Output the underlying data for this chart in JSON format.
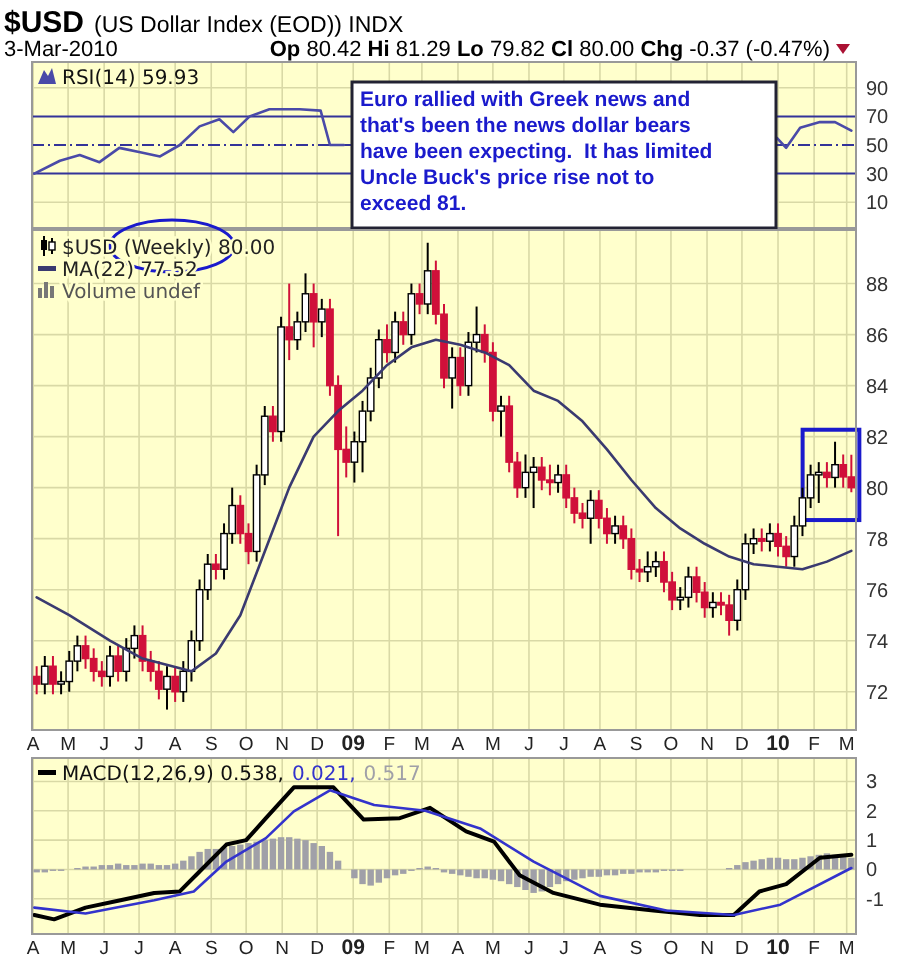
{
  "chart_data": [
    {
      "type": "line",
      "title": "$USD",
      "subtitle": "(US Dollar Index (EOD)) INDX",
      "annotations": [
        "3-Mar-2010",
        "Op 80.42 Hi 81.29 Lo 79.82 Cl 80.00 Chg -0.37 (-0.47%)",
        "Euro rallied with Greek news and that's been the news dollar bears have been expecting.  It has limited Uncle Buck's price rise not to exceed 81."
      ],
      "xlim": [
        "2008-03-31",
        "2010-03-09"
      ],
      "xticks": [
        {
          "value": "2008-04-01",
          "label": null
        },
        {
          "value": "2008-05-01",
          "label": null
        },
        {
          "value": "2008-06-01",
          "label": null
        },
        {
          "value": "2008-07-01",
          "label": null
        },
        {
          "value": "2008-08-01",
          "label": null
        },
        {
          "value": "2008-09-01",
          "label": null
        },
        {
          "value": "2008-10-01",
          "label": null
        },
        {
          "value": "2008-11-01",
          "label": null
        },
        {
          "value": "2008-12-01",
          "label": null
        },
        {
          "value": "2009-01-01",
          "label": null
        },
        {
          "value": "2009-02-01",
          "label": null
        },
        {
          "value": "2009-03-01",
          "label": null
        },
        {
          "value": "2009-04-01",
          "label": null
        },
        {
          "value": "2009-05-01",
          "label": null
        },
        {
          "value": "2009-06-01",
          "label": null
        },
        {
          "value": "2009-07-01",
          "label": null
        },
        {
          "value": "2009-08-01",
          "label": null
        },
        {
          "value": "2009-09-01",
          "label": null
        },
        {
          "value": "2009-10-01",
          "label": null
        },
        {
          "value": "2009-11-01",
          "label": null
        },
        {
          "value": "2009-12-01",
          "label": null
        },
        {
          "value": "2010-01-01",
          "label": null
        },
        {
          "value": "2010-02-01",
          "label": null
        },
        {
          "value": "2010-03-01",
          "label": null
        }
      ],
      "ylim": [
        -8,
        108
      ],
      "yticks": [
        10,
        30,
        50,
        70,
        90
      ],
      "grid": true,
      "tick_labels": "y",
      "legend": "top left",
      "ref_lines": [
        {
          "axis": "y",
          "value": 70,
          "color": "#333399"
        },
        {
          "axis": "y",
          "value": 50,
          "line_style": "dashed",
          "color": "#333399"
        },
        {
          "axis": "y",
          "value": 30,
          "color": "#333399"
        }
      ],
      "series": [
        {
          "name": "RSI(14) 59.93",
          "color": "#4a4aa8",
          "x": [
            "2008-04-02",
            "2008-04-24",
            "2008-05-11",
            "2008-05-28",
            "2008-06-14",
            "2008-07-02",
            "2008-07-19",
            "2008-08-05",
            "2008-08-22",
            "2008-09-08",
            "2008-09-20",
            "2008-10-04",
            "2008-10-21",
            "2008-11-16",
            "2008-12-04",
            "2008-12-12",
            "2008-12-24",
            "2009-06-15",
            "2009-12-31",
            "2010-01-08",
            "2010-01-20",
            "2010-02-06",
            "2010-02-19",
            "2010-03-05"
          ],
          "values": [
            30,
            39,
            43,
            38,
            48,
            45,
            42,
            50,
            63,
            68,
            59,
            70,
            75,
            75,
            74,
            50,
            50,
            null,
            55,
            48,
            62,
            66,
            66,
            60
          ]
        }
      ]
    },
    {
      "type": "candlestick",
      "xlim": [
        "2008-03-31",
        "2010-03-09"
      ],
      "xticks": [
        {
          "value": "2008-04-01",
          "label": "A"
        },
        {
          "value": "2008-05-01",
          "label": "M"
        },
        {
          "value": "2008-06-01",
          "label": "J"
        },
        {
          "value": "2008-07-01",
          "label": "J"
        },
        {
          "value": "2008-08-01",
          "label": "A"
        },
        {
          "value": "2008-09-01",
          "label": "S"
        },
        {
          "value": "2008-10-01",
          "label": "O"
        },
        {
          "value": "2008-11-01",
          "label": "N"
        },
        {
          "value": "2008-12-01",
          "label": "D"
        },
        {
          "value": "2009-01-01",
          "label": "09"
        },
        {
          "value": "2009-02-01",
          "label": "F"
        },
        {
          "value": "2009-03-01",
          "label": "M"
        },
        {
          "value": "2009-04-01",
          "label": "A"
        },
        {
          "value": "2009-05-01",
          "label": "M"
        },
        {
          "value": "2009-06-01",
          "label": "J"
        },
        {
          "value": "2009-07-01",
          "label": "J"
        },
        {
          "value": "2009-08-01",
          "label": "A"
        },
        {
          "value": "2009-09-01",
          "label": "S"
        },
        {
          "value": "2009-10-01",
          "label": "O"
        },
        {
          "value": "2009-11-01",
          "label": "N"
        },
        {
          "value": "2009-12-01",
          "label": "D"
        },
        {
          "value": "2010-01-01",
          "label": "10"
        },
        {
          "value": "2010-02-01",
          "label": "F"
        },
        {
          "value": "2010-03-01",
          "label": "M"
        }
      ],
      "ylim": [
        70.5,
        90.1
      ],
      "yticks": [
        72,
        74,
        76,
        78,
        80,
        82,
        84,
        86,
        88
      ],
      "grid": true,
      "legend": "top left",
      "annotations": [
        "Volume undef"
      ],
      "series": [
        {
          "name": "$USD (Weekly) 80.00",
          "colors": [
            "#d0103a",
            "#ffffff",
            "#d0103a",
            "#ffffff",
            "#ffffff",
            "#ffffff",
            "#d0103a",
            "#d0103a",
            "#d0103a",
            "#ffffff",
            "#d0103a",
            "#ffffff",
            "#ffffff",
            "#d0103a",
            "#d0103a",
            "#d0103a",
            "#ffffff",
            "#d0103a",
            "#ffffff",
            "#ffffff",
            "#ffffff",
            "#ffffff",
            "#d0103a",
            "#ffffff",
            "#ffffff",
            "#d0103a",
            "#d0103a",
            "#ffffff",
            "#ffffff",
            "#d0103a",
            "#ffffff",
            "#d0103a",
            "#ffffff",
            "#ffffff",
            "#d0103a",
            "#ffffff",
            "#d0103a",
            "#d0103a",
            "#d0103a",
            "#ffffff",
            "#ffffff",
            "#ffffff",
            "#ffffff",
            "#d0103a",
            "#ffffff",
            "#d0103a",
            "#ffffff",
            "#d0103a",
            "#ffffff",
            "#d0103a",
            "#d0103a",
            "#ffffff",
            "#d0103a",
            "#ffffff",
            "#ffffff",
            "#d0103a",
            "#d0103a",
            "#ffffff",
            "#d0103a",
            "#d0103a",
            "#ffffff",
            "#ffffff",
            "#d0103a",
            "#d0103a",
            "#ffffff",
            "#d0103a",
            "#d0103a",
            "#d0103a",
            "#ffffff",
            "#d0103a",
            "#d0103a",
            "#ffffff",
            "#d0103a",
            "#d0103a",
            "#d0103a",
            "#ffffff",
            "#ffffff",
            "#d0103a",
            "#d0103a",
            "#ffffff",
            "#ffffff",
            "#d0103a",
            "#d0103a",
            "#ffffff",
            "#d0103a",
            "#d0103a",
            "#ffffff",
            "#ffffff",
            "#ffffff",
            "#d0103a",
            "#ffffff",
            "#d0103a",
            "#d0103a",
            "#ffffff",
            "#ffffff",
            "#ffffff",
            "#ffffff",
            "#d0103a",
            "#ffffff",
            "#d0103a",
            "#d0103a"
          ],
          "x": [
            "2008-04-04",
            "2008-04-11",
            "2008-04-18",
            "2008-04-25",
            "2008-05-02",
            "2008-05-09",
            "2008-05-16",
            "2008-05-23",
            "2008-05-30",
            "2008-06-06",
            "2008-06-13",
            "2008-06-20",
            "2008-06-27",
            "2008-07-04",
            "2008-07-11",
            "2008-07-18",
            "2008-07-25",
            "2008-08-01",
            "2008-08-08",
            "2008-08-15",
            "2008-08-22",
            "2008-08-29",
            "2008-09-05",
            "2008-09-12",
            "2008-09-19",
            "2008-09-26",
            "2008-10-03",
            "2008-10-10",
            "2008-10-17",
            "2008-10-24",
            "2008-10-31",
            "2008-11-07",
            "2008-11-14",
            "2008-11-21",
            "2008-11-28",
            "2008-12-05",
            "2008-12-12",
            "2008-12-19",
            "2008-12-26",
            "2009-01-02",
            "2009-01-09",
            "2009-01-16",
            "2009-01-23",
            "2009-01-30",
            "2009-02-06",
            "2009-02-13",
            "2009-02-20",
            "2009-02-27",
            "2009-03-06",
            "2009-03-13",
            "2009-03-20",
            "2009-03-27",
            "2009-04-03",
            "2009-04-10",
            "2009-04-17",
            "2009-04-24",
            "2009-05-01",
            "2009-05-08",
            "2009-05-15",
            "2009-05-22",
            "2009-05-29",
            "2009-06-05",
            "2009-06-12",
            "2009-06-19",
            "2009-06-26",
            "2009-07-03",
            "2009-07-10",
            "2009-07-17",
            "2009-07-24",
            "2009-07-31",
            "2009-08-07",
            "2009-08-14",
            "2009-08-21",
            "2009-08-28",
            "2009-09-04",
            "2009-09-11",
            "2009-09-18",
            "2009-09-25",
            "2009-10-02",
            "2009-10-09",
            "2009-10-16",
            "2009-10-23",
            "2009-10-30",
            "2009-11-06",
            "2009-11-13",
            "2009-11-20",
            "2009-11-27",
            "2009-12-04",
            "2009-12-11",
            "2009-12-18",
            "2009-12-25",
            "2010-01-01",
            "2010-01-08",
            "2010-01-15",
            "2010-01-22",
            "2010-01-29",
            "2010-02-05",
            "2010-02-12",
            "2010-02-19",
            "2010-02-26",
            "2010-03-05"
          ],
          "ohlc": [
            [
              72.6,
              73.0,
              71.9,
              72.3
            ],
            [
              72.3,
              73.4,
              71.9,
              73.0
            ],
            [
              73.0,
              73.4,
              71.9,
              72.3
            ],
            [
              72.3,
              72.8,
              71.9,
              72.4
            ],
            [
              72.4,
              73.6,
              72.0,
              73.2
            ],
            [
              73.2,
              74.2,
              72.8,
              73.8
            ],
            [
              73.8,
              74.2,
              72.9,
              73.3
            ],
            [
              73.3,
              73.7,
              72.4,
              72.8
            ],
            [
              72.8,
              73.2,
              72.2,
              72.6
            ],
            [
              72.6,
              73.8,
              72.2,
              73.4
            ],
            [
              73.4,
              73.8,
              72.4,
              72.8
            ],
            [
              72.8,
              74.1,
              72.4,
              73.7
            ],
            [
              73.7,
              74.6,
              73.3,
              74.2
            ],
            [
              74.2,
              74.6,
              72.8,
              73.2
            ],
            [
              73.2,
              73.6,
              72.4,
              72.8
            ],
            [
              72.8,
              73.2,
              71.7,
              72.1
            ],
            [
              72.1,
              73.0,
              71.3,
              72.6
            ],
            [
              72.6,
              73.0,
              71.6,
              72.0
            ],
            [
              72.0,
              73.2,
              71.6,
              72.8
            ],
            [
              72.8,
              74.4,
              72.4,
              74.0
            ],
            [
              74.0,
              76.4,
              73.6,
              76.0
            ],
            [
              76.0,
              77.4,
              75.6,
              77.0
            ],
            [
              77.0,
              77.4,
              76.4,
              76.8
            ],
            [
              76.8,
              78.6,
              76.4,
              78.2
            ],
            [
              78.2,
              80.0,
              77.8,
              79.3
            ],
            [
              79.3,
              79.7,
              77.8,
              78.2
            ],
            [
              78.2,
              78.6,
              77.0,
              77.5
            ],
            [
              77.5,
              80.9,
              77.1,
              80.5
            ],
            [
              80.5,
              83.2,
              80.1,
              82.8
            ],
            [
              82.8,
              83.2,
              81.8,
              82.2
            ],
            [
              82.2,
              86.7,
              81.8,
              86.3
            ],
            [
              86.3,
              88.0,
              85.0,
              85.8
            ],
            [
              85.8,
              86.9,
              85.4,
              86.5
            ],
            [
              86.5,
              88.4,
              86.1,
              87.6
            ],
            [
              87.6,
              88.0,
              85.5,
              86.5
            ],
            [
              86.5,
              87.4,
              85.9,
              87.0
            ],
            [
              87.0,
              87.4,
              83.6,
              84.0
            ],
            [
              84.0,
              84.4,
              78.1,
              81.5
            ],
            [
              81.5,
              82.4,
              80.4,
              81.0
            ],
            [
              81.0,
              82.2,
              80.2,
              81.8
            ],
            [
              81.8,
              83.4,
              80.6,
              83.0
            ],
            [
              83.0,
              84.7,
              82.6,
              84.3
            ],
            [
              84.3,
              86.2,
              83.9,
              85.8
            ],
            [
              85.8,
              86.4,
              84.9,
              85.3
            ],
            [
              85.3,
              86.9,
              84.9,
              86.5
            ],
            [
              86.5,
              86.9,
              85.6,
              86.0
            ],
            [
              86.0,
              88.0,
              85.6,
              87.6
            ],
            [
              87.6,
              88.0,
              86.8,
              87.2
            ],
            [
              87.2,
              89.6,
              86.8,
              88.5
            ],
            [
              88.5,
              88.9,
              86.4,
              86.8
            ],
            [
              86.8,
              87.2,
              83.9,
              84.3
            ],
            [
              84.3,
              85.5,
              83.1,
              85.1
            ],
            [
              85.1,
              85.5,
              83.6,
              84.0
            ],
            [
              84.0,
              86.1,
              83.6,
              85.7
            ],
            [
              85.7,
              87.1,
              85.3,
              86.0
            ],
            [
              86.0,
              86.4,
              84.9,
              85.3
            ],
            [
              85.3,
              85.7,
              82.6,
              83.0
            ],
            [
              83.0,
              83.6,
              82.0,
              83.2
            ],
            [
              83.2,
              83.6,
              80.6,
              81.0
            ],
            [
              81.0,
              81.4,
              79.6,
              80.0
            ],
            [
              80.0,
              81.3,
              79.6,
              80.6
            ],
            [
              80.6,
              81.2,
              79.2,
              80.8
            ],
            [
              80.8,
              81.2,
              79.9,
              80.3
            ],
            [
              80.3,
              80.9,
              79.7,
              80.2
            ],
            [
              80.2,
              80.9,
              79.8,
              80.5
            ],
            [
              80.5,
              80.9,
              79.2,
              79.6
            ],
            [
              79.6,
              80.0,
              78.6,
              79.0
            ],
            [
              79.0,
              79.4,
              78.4,
              78.8
            ],
            [
              78.8,
              79.9,
              77.8,
              79.5
            ],
            [
              79.5,
              79.9,
              78.4,
              78.8
            ],
            [
              78.8,
              79.2,
              77.8,
              78.2
            ],
            [
              78.2,
              78.9,
              77.8,
              78.5
            ],
            [
              78.5,
              78.9,
              77.6,
              78.0
            ],
            [
              78.0,
              78.4,
              76.4,
              76.8
            ],
            [
              76.8,
              77.2,
              76.3,
              76.7
            ],
            [
              76.7,
              77.5,
              76.3,
              76.9
            ],
            [
              76.9,
              77.5,
              76.5,
              77.1
            ],
            [
              77.1,
              77.5,
              75.9,
              76.3
            ],
            [
              76.3,
              76.7,
              75.2,
              75.6
            ],
            [
              75.6,
              76.1,
              75.2,
              75.7
            ],
            [
              75.7,
              76.9,
              75.3,
              76.5
            ],
            [
              76.5,
              76.9,
              75.5,
              75.9
            ],
            [
              75.9,
              76.3,
              74.9,
              75.3
            ],
            [
              75.3,
              75.9,
              74.9,
              75.5
            ],
            [
              75.5,
              75.9,
              75.0,
              75.4
            ],
            [
              75.4,
              75.8,
              74.2,
              74.8
            ],
            [
              74.8,
              76.4,
              74.4,
              76.0
            ],
            [
              76.0,
              78.2,
              75.6,
              77.8
            ],
            [
              77.8,
              78.4,
              77.4,
              78.0
            ],
            [
              78.0,
              78.4,
              77.5,
              77.9
            ],
            [
              77.9,
              78.6,
              77.5,
              78.2
            ],
            [
              78.2,
              78.6,
              77.3,
              77.7
            ],
            [
              77.7,
              78.1,
              76.9,
              77.3
            ],
            [
              77.3,
              78.9,
              76.9,
              78.5
            ],
            [
              78.5,
              80.0,
              78.1,
              79.6
            ],
            [
              79.6,
              80.9,
              79.2,
              80.5
            ],
            [
              80.5,
              81.0,
              79.4,
              80.6
            ],
            [
              80.6,
              81.0,
              80.0,
              80.4
            ],
            [
              80.4,
              81.8,
              80.0,
              80.9
            ],
            [
              80.9,
              81.3,
              80.0,
              80.42
            ],
            [
              80.42,
              81.29,
              79.82,
              80.0
            ]
          ]
        },
        {
          "type": "line",
          "name": "MA(22) 77.52",
          "color": "#3a3a70",
          "x": [
            "2008-04-04",
            "2008-05-02",
            "2008-06-06",
            "2008-07-04",
            "2008-08-15",
            "2008-09-05",
            "2008-09-26",
            "2008-10-17",
            "2008-11-07",
            "2008-11-28",
            "2008-12-19",
            "2009-01-09",
            "2009-01-30",
            "2009-02-20",
            "2009-03-13",
            "2009-04-03",
            "2009-04-24",
            "2009-05-15",
            "2009-06-05",
            "2009-06-26",
            "2009-07-17",
            "2009-08-07",
            "2009-08-28",
            "2009-09-18",
            "2009-10-09",
            "2009-10-30",
            "2009-11-20",
            "2009-12-11",
            "2010-01-01",
            "2010-01-22",
            "2010-02-12",
            "2010-03-05"
          ],
          "values": [
            75.7,
            75.0,
            74.0,
            73.3,
            72.8,
            73.5,
            75.0,
            77.5,
            80.0,
            82.0,
            83.0,
            83.8,
            84.8,
            85.5,
            85.8,
            85.6,
            85.3,
            84.8,
            83.8,
            83.4,
            82.6,
            81.5,
            80.3,
            79.2,
            78.4,
            77.8,
            77.3,
            77.0,
            76.9,
            76.8,
            77.1,
            77.52
          ]
        }
      ]
    },
    {
      "type": "line",
      "xlim": [
        "2008-03-31",
        "2010-03-09"
      ],
      "xticks": [
        {
          "value": "2008-04-01",
          "label": "A"
        },
        {
          "value": "2008-05-01",
          "label": "M"
        },
        {
          "value": "2008-06-01",
          "label": "J"
        },
        {
          "value": "2008-07-01",
          "label": "J"
        },
        {
          "value": "2008-08-01",
          "label": "A"
        },
        {
          "value": "2008-09-01",
          "label": "S"
        },
        {
          "value": "2008-10-01",
          "label": "O"
        },
        {
          "value": "2008-11-01",
          "label": "N"
        },
        {
          "value": "2008-12-01",
          "label": "D"
        },
        {
          "value": "2009-01-01",
          "label": "09"
        },
        {
          "value": "2009-02-01",
          "label": "F"
        },
        {
          "value": "2009-03-01",
          "label": "M"
        },
        {
          "value": "2009-04-01",
          "label": "A"
        },
        {
          "value": "2009-05-01",
          "label": "M"
        },
        {
          "value": "2009-06-01",
          "label": "J"
        },
        {
          "value": "2009-07-01",
          "label": "J"
        },
        {
          "value": "2009-08-01",
          "label": "A"
        },
        {
          "value": "2009-09-01",
          "label": "S"
        },
        {
          "value": "2009-10-01",
          "label": "O"
        },
        {
          "value": "2009-11-01",
          "label": "N"
        },
        {
          "value": "2009-12-01",
          "label": "D"
        },
        {
          "value": "2010-01-01",
          "label": "10"
        },
        {
          "value": "2010-02-01",
          "label": "F"
        },
        {
          "value": "2010-03-01",
          "label": "M"
        }
      ],
      "ylim": [
        -2.2,
        3.8
      ],
      "yticks": [
        -1,
        0,
        1,
        2,
        3
      ],
      "grid": true,
      "legend": "top left",
      "series": [
        {
          "type": "bar",
          "name": "0.517",
          "color": "#a0a0a8",
          "x": [
            "2008-04-04",
            "2008-04-11",
            "2008-04-18",
            "2008-04-25",
            "2008-05-02",
            "2008-05-09",
            "2008-05-16",
            "2008-05-23",
            "2008-05-30",
            "2008-06-06",
            "2008-06-13",
            "2008-06-20",
            "2008-06-27",
            "2008-07-04",
            "2008-07-11",
            "2008-07-18",
            "2008-07-25",
            "2008-08-01",
            "2008-08-08",
            "2008-08-15",
            "2008-08-22",
            "2008-08-29",
            "2008-09-05",
            "2008-09-12",
            "2008-09-19",
            "2008-09-26",
            "2008-10-03",
            "2008-10-10",
            "2008-10-17",
            "2008-10-24",
            "2008-10-31",
            "2008-11-07",
            "2008-11-14",
            "2008-11-21",
            "2008-11-28",
            "2008-12-05",
            "2008-12-12",
            "2008-12-19",
            "2008-12-26",
            "2009-01-02",
            "2009-01-09",
            "2009-01-16",
            "2009-01-23",
            "2009-01-30",
            "2009-02-06",
            "2009-02-13",
            "2009-02-20",
            "2009-02-27",
            "2009-03-06",
            "2009-03-13",
            "2009-03-20",
            "2009-03-27",
            "2009-04-03",
            "2009-04-10",
            "2009-04-17",
            "2009-04-24",
            "2009-05-01",
            "2009-05-08",
            "2009-05-15",
            "2009-05-22",
            "2009-05-29",
            "2009-06-05",
            "2009-06-12",
            "2009-06-19",
            "2009-06-26",
            "2009-07-03",
            "2009-07-10",
            "2009-07-17",
            "2009-07-24",
            "2009-07-31",
            "2009-08-07",
            "2009-08-14",
            "2009-08-21",
            "2009-08-28",
            "2009-09-04",
            "2009-09-11",
            "2009-09-18",
            "2009-09-25",
            "2009-10-02",
            "2009-10-09",
            "2009-10-16",
            "2009-10-23",
            "2009-10-30",
            "2009-11-06",
            "2009-11-13",
            "2009-11-20",
            "2009-11-27",
            "2009-12-04",
            "2009-12-11",
            "2009-12-18",
            "2009-12-25",
            "2010-01-01",
            "2010-01-08",
            "2010-01-15",
            "2010-01-22",
            "2010-01-29",
            "2010-02-05",
            "2010-02-12",
            "2010-02-19",
            "2010-02-26",
            "2010-03-05"
          ],
          "values": [
            -0.1,
            -0.1,
            -0.05,
            -0.05,
            0,
            0.05,
            0.1,
            0.1,
            0.15,
            0.15,
            0.2,
            0.15,
            0.15,
            0.2,
            0.2,
            0.15,
            0.15,
            0.2,
            0.3,
            0.45,
            0.6,
            0.7,
            0.7,
            0.75,
            0.8,
            0.85,
            0.9,
            0.95,
            1.0,
            1.05,
            1.1,
            1.1,
            1.05,
            1.0,
            0.9,
            0.8,
            0.6,
            0.3,
            0,
            -0.3,
            -0.5,
            -0.55,
            -0.45,
            -0.3,
            -0.2,
            -0.15,
            -0.05,
            0.05,
            0.1,
            0.05,
            -0.1,
            -0.15,
            -0.2,
            -0.25,
            -0.3,
            -0.3,
            -0.35,
            -0.4,
            -0.5,
            -0.6,
            -0.7,
            -0.8,
            -0.75,
            -0.6,
            -0.5,
            -0.4,
            -0.35,
            -0.3,
            -0.25,
            -0.25,
            -0.2,
            -0.2,
            -0.15,
            -0.15,
            -0.1,
            -0.1,
            -0.1,
            -0.05,
            -0.05,
            -0.05,
            0,
            0,
            0,
            0,
            0,
            0.05,
            0.15,
            0.25,
            0.3,
            0.35,
            0.4,
            0.4,
            0.35,
            0.35,
            0.4,
            0.45,
            0.5,
            0.55,
            0.5,
            0.45,
            0.4
          ]
        },
        {
          "name": "MACD(12,26,9) 0.538,",
          "color": "#000000",
          "x": [
            "2008-04-02",
            "2008-04-19",
            "2008-05-16",
            "2008-06-15",
            "2008-07-14",
            "2008-08-05",
            "2008-08-22",
            "2008-09-14",
            "2008-10-01",
            "2008-10-18",
            "2008-11-11",
            "2008-12-15",
            "2009-01-10",
            "2009-02-10",
            "2009-03-08",
            "2009-04-08",
            "2009-05-02",
            "2009-05-24",
            "2009-06-22",
            "2009-08-01",
            "2009-09-16",
            "2009-10-26",
            "2009-11-24",
            "2009-12-16",
            "2010-01-08",
            "2010-02-06",
            "2010-03-05"
          ],
          "values": [
            -1.55,
            -1.7,
            -1.3,
            -1.05,
            -0.8,
            -0.75,
            -0.07,
            0.85,
            1.0,
            1.75,
            2.8,
            2.8,
            1.7,
            1.75,
            2.1,
            1.3,
            0.95,
            -0.2,
            -0.8,
            -1.2,
            -1.4,
            -1.55,
            -1.55,
            -0.75,
            -0.5,
            0.4,
            0.5
          ]
        },
        {
          "name": "0.021,",
          "color": "#3333cc",
          "x": [
            "2008-04-02",
            "2008-05-16",
            "2008-07-14",
            "2008-08-17",
            "2008-09-14",
            "2008-10-18",
            "2008-11-11",
            "2008-12-12",
            "2009-01-19",
            "2009-03-04",
            "2009-04-20",
            "2009-06-05",
            "2009-08-01",
            "2009-09-27",
            "2009-11-24",
            "2010-01-03",
            "2010-03-05"
          ],
          "values": [
            -1.3,
            -1.5,
            -1.05,
            -0.75,
            0.27,
            1.07,
            1.98,
            2.7,
            2.2,
            2.0,
            1.4,
            0.27,
            -0.9,
            -1.4,
            -1.55,
            -1.2,
            0.05
          ]
        }
      ]
    }
  ]
}
